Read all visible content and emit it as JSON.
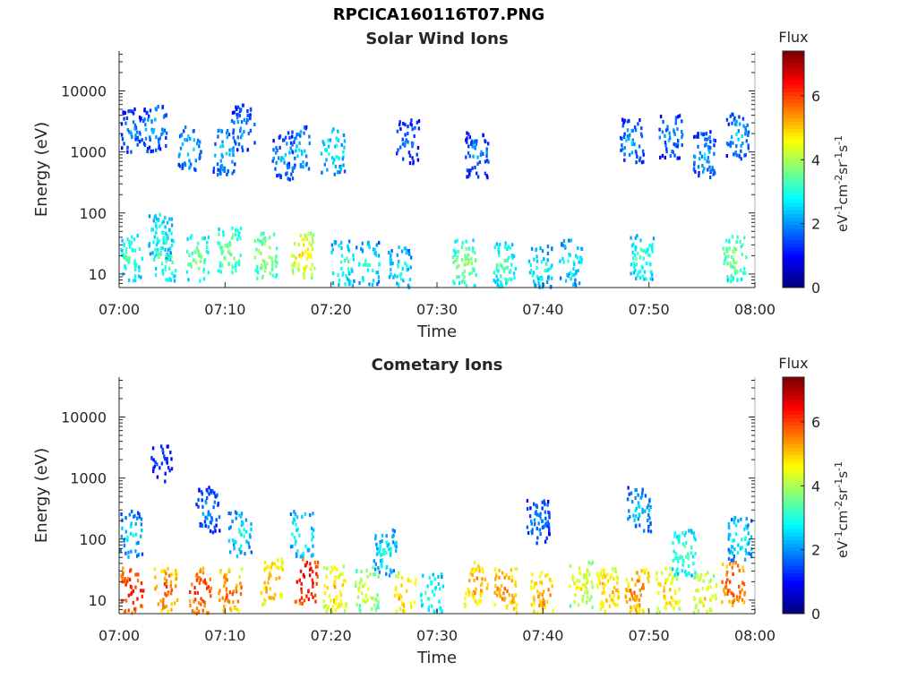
{
  "figure": {
    "title": "RPCICA160116T07.PNG"
  },
  "chart_data": [
    {
      "type": "heatmap",
      "title": "Solar Wind Ions",
      "xlabel": "Time",
      "ylabel": "Energy (eV)",
      "y_scale": "log",
      "ylim": [
        6,
        45000
      ],
      "xlim": [
        "07:00",
        "08:00"
      ],
      "x_ticks": [
        "07:00",
        "07:10",
        "07:20",
        "07:30",
        "07:40",
        "07:50",
        "08:00"
      ],
      "y_ticks": [
        "10",
        "100",
        "1000",
        "10000"
      ],
      "colorbar": {
        "label": "Flux",
        "unit": "eV-1cm-2sr-1s-1",
        "range": [
          0,
          7.4
        ],
        "ticks": [
          "0",
          "2",
          "4",
          "6"
        ],
        "colormap": "jet"
      },
      "clusters": [
        {
          "t": 1.0,
          "e": 18,
          "v": 3.5
        },
        {
          "t": 1.2,
          "e": 2200,
          "v": 2.0
        },
        {
          "t": 3.3,
          "e": 2400,
          "v": 2.4
        },
        {
          "t": 3.8,
          "e": 40,
          "v": 3.2
        },
        {
          "t": 4.3,
          "e": 18,
          "v": 3.6
        },
        {
          "t": 6.6,
          "e": 1200,
          "v": 2.6
        },
        {
          "t": 7.3,
          "e": 18,
          "v": 3.8
        },
        {
          "t": 9.8,
          "e": 1000,
          "v": 2.6
        },
        {
          "t": 10.3,
          "e": 25,
          "v": 4.0
        },
        {
          "t": 11.6,
          "e": 2500,
          "v": 2.2
        },
        {
          "t": 13.8,
          "e": 20,
          "v": 4.2
        },
        {
          "t": 15.5,
          "e": 800,
          "v": 2.3
        },
        {
          "t": 17.3,
          "e": 20,
          "v": 5.0
        },
        {
          "t": 16.8,
          "e": 1100,
          "v": 2.6
        },
        {
          "t": 20.1,
          "e": 1000,
          "v": 3.0
        },
        {
          "t": 21.0,
          "e": 15,
          "v": 3.3
        },
        {
          "t": 23.4,
          "e": 14,
          "v": 3.1
        },
        {
          "t": 26.4,
          "e": 12,
          "v": 3.0
        },
        {
          "t": 27.2,
          "e": 1500,
          "v": 2.0
        },
        {
          "t": 32.5,
          "e": 15,
          "v": 4.0
        },
        {
          "t": 33.7,
          "e": 900,
          "v": 2.2
        },
        {
          "t": 36.3,
          "e": 14,
          "v": 3.5
        },
        {
          "t": 39.7,
          "e": 12,
          "v": 3.0
        },
        {
          "t": 42.5,
          "e": 15,
          "v": 3.0
        },
        {
          "t": 48.3,
          "e": 1500,
          "v": 2.3
        },
        {
          "t": 49.3,
          "e": 18,
          "v": 3.5
        },
        {
          "t": 52.0,
          "e": 1800,
          "v": 2.2
        },
        {
          "t": 55.2,
          "e": 900,
          "v": 2.4
        },
        {
          "t": 58.0,
          "e": 18,
          "v": 4.0
        },
        {
          "t": 58.3,
          "e": 1800,
          "v": 2.4
        }
      ]
    },
    {
      "type": "heatmap",
      "title": "Cometary Ions",
      "xlabel": "Time",
      "ylabel": "Energy (eV)",
      "y_scale": "log",
      "ylim": [
        6,
        45000
      ],
      "xlim": [
        "07:00",
        "08:00"
      ],
      "x_ticks": [
        "07:00",
        "07:10",
        "07:20",
        "07:30",
        "07:40",
        "07:50",
        "08:00"
      ],
      "y_ticks": [
        "10",
        "100",
        "1000",
        "10000"
      ],
      "colorbar": {
        "label": "Flux",
        "unit": "eV-1cm-2sr-1s-1",
        "range": [
          0,
          7.4
        ],
        "ticks": [
          "0",
          "2",
          "4",
          "6"
        ],
        "colormap": "jet"
      },
      "clusters": [
        {
          "t": 1.2,
          "e": 14,
          "v": 6.6
        },
        {
          "t": 1.0,
          "e": 120,
          "v": 2.8
        },
        {
          "t": 4.3,
          "e": 15,
          "v": 6.0
        },
        {
          "t": 4.0,
          "e": 2000,
          "v": 1.6
        },
        {
          "t": 7.6,
          "e": 14,
          "v": 6.4
        },
        {
          "t": 8.3,
          "e": 300,
          "v": 2.2
        },
        {
          "t": 10.4,
          "e": 14,
          "v": 6.0
        },
        {
          "t": 11.3,
          "e": 120,
          "v": 3.0
        },
        {
          "t": 14.3,
          "e": 20,
          "v": 5.6
        },
        {
          "t": 17.6,
          "e": 20,
          "v": 6.9
        },
        {
          "t": 17.2,
          "e": 120,
          "v": 3.2
        },
        {
          "t": 20.3,
          "e": 15,
          "v": 5.2
        },
        {
          "t": 23.3,
          "e": 15,
          "v": 4.6
        },
        {
          "t": 25.0,
          "e": 60,
          "v": 3.0
        },
        {
          "t": 26.9,
          "e": 12,
          "v": 5.4
        },
        {
          "t": 29.4,
          "e": 12,
          "v": 3.4
        },
        {
          "t": 33.6,
          "e": 18,
          "v": 5.6
        },
        {
          "t": 36.4,
          "e": 14,
          "v": 5.8
        },
        {
          "t": 39.8,
          "e": 12,
          "v": 5.6
        },
        {
          "t": 39.5,
          "e": 200,
          "v": 2.2
        },
        {
          "t": 43.5,
          "e": 18,
          "v": 4.8
        },
        {
          "t": 46.0,
          "e": 14,
          "v": 5.4
        },
        {
          "t": 48.8,
          "e": 14,
          "v": 5.8
        },
        {
          "t": 49.0,
          "e": 300,
          "v": 2.6
        },
        {
          "t": 51.7,
          "e": 14,
          "v": 5.2
        },
        {
          "t": 53.2,
          "e": 60,
          "v": 3.6
        },
        {
          "t": 55.2,
          "e": 12,
          "v": 5.0
        },
        {
          "t": 57.9,
          "e": 18,
          "v": 6.2
        },
        {
          "t": 58.5,
          "e": 100,
          "v": 3.0
        }
      ]
    }
  ]
}
